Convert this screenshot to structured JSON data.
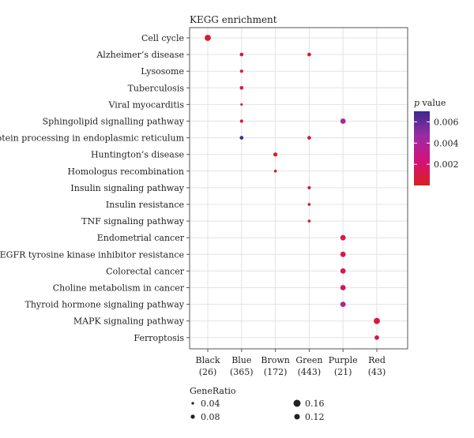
{
  "chart_data": {
    "type": "scatter",
    "title": "KEGG enrichment",
    "categories_x": [
      {
        "name": "Black",
        "count": "(26)"
      },
      {
        "name": "Blue",
        "count": "(365)"
      },
      {
        "name": "Brown",
        "count": "(172)"
      },
      {
        "name": "Green",
        "count": "(443)"
      },
      {
        "name": "Purple",
        "count": "(21)"
      },
      {
        "name": "Red",
        "count": "(43)"
      }
    ],
    "categories_y": [
      "Cell cycle",
      "Alzheimer’s disease",
      "Lysosome",
      "Tuberculosis",
      "Viral myocarditis",
      "Sphingolipid signalling pathway",
      "Protein processing in endoplasmic reticulum",
      "Huntington’s disease",
      "Homologus recombination",
      "Insulin signaling pathway",
      "Insulin resistance",
      "TNF signaling pathway",
      "Endometrial cancer",
      "EGFR tyrosine kinase inhibitor resistance",
      "Colorectal cancer",
      "Choline metabolism in cancer",
      "Thyroid hormone signaling pathway",
      "MAPK signaling pathway",
      "Ferroptosis"
    ],
    "points": [
      {
        "x": "Black",
        "y": "Cell cycle",
        "gene_ratio": 0.12,
        "p": 0.0004
      },
      {
        "x": "Blue",
        "y": "Alzheimer’s disease",
        "gene_ratio": 0.06,
        "p": 0.0006
      },
      {
        "x": "Green",
        "y": "Alzheimer’s disease",
        "gene_ratio": 0.06,
        "p": 0.0006
      },
      {
        "x": "Blue",
        "y": "Lysosome",
        "gene_ratio": 0.05,
        "p": 0.0007
      },
      {
        "x": "Blue",
        "y": "Tuberculosis",
        "gene_ratio": 0.06,
        "p": 0.0005
      },
      {
        "x": "Blue",
        "y": "Viral myocarditis",
        "gene_ratio": 0.03,
        "p": 0.001
      },
      {
        "x": "Blue",
        "y": "Sphingolipid signalling pathway",
        "gene_ratio": 0.05,
        "p": 0.0009
      },
      {
        "x": "Purple",
        "y": "Sphingolipid signalling pathway",
        "gene_ratio": 0.1,
        "p": 0.0042
      },
      {
        "x": "Blue",
        "y": "Protein processing in endoplasmic reticulum",
        "gene_ratio": 0.06,
        "p": 0.0068
      },
      {
        "x": "Green",
        "y": "Protein processing in endoplasmic reticulum",
        "gene_ratio": 0.06,
        "p": 0.0006
      },
      {
        "x": "Brown",
        "y": "Huntington’s disease",
        "gene_ratio": 0.07,
        "p": 0.0004
      },
      {
        "x": "Brown",
        "y": "Homologus recombination",
        "gene_ratio": 0.04,
        "p": 0.0006
      },
      {
        "x": "Green",
        "y": "Insulin signaling pathway",
        "gene_ratio": 0.05,
        "p": 0.0007
      },
      {
        "x": "Green",
        "y": "Insulin resistance",
        "gene_ratio": 0.04,
        "p": 0.0008
      },
      {
        "x": "Green",
        "y": "TNF signaling pathway",
        "gene_ratio": 0.04,
        "p": 0.0008
      },
      {
        "x": "Purple",
        "y": "Endometrial cancer",
        "gene_ratio": 0.1,
        "p": 0.001
      },
      {
        "x": "Purple",
        "y": "EGFR tyrosine kinase inhibitor resistance",
        "gene_ratio": 0.1,
        "p": 0.0012
      },
      {
        "x": "Purple",
        "y": "Colorectal cancer",
        "gene_ratio": 0.1,
        "p": 0.0012
      },
      {
        "x": "Purple",
        "y": "Choline metabolism in cancer",
        "gene_ratio": 0.1,
        "p": 0.0018
      },
      {
        "x": "Purple",
        "y": "Thyroid hormone signaling pathway",
        "gene_ratio": 0.1,
        "p": 0.004
      },
      {
        "x": "Red",
        "y": "MAPK signaling pathway",
        "gene_ratio": 0.12,
        "p": 0.0008
      },
      {
        "x": "Red",
        "y": "Ferroptosis",
        "gene_ratio": 0.08,
        "p": 0.0009
      }
    ],
    "color_legend": {
      "title_italic": "p",
      "title_rest": " value",
      "range": [
        0,
        0.007
      ],
      "ticks": [
        0.006,
        0.004,
        0.002
      ],
      "tick_labels": [
        "0.006",
        "0.004",
        "0.002"
      ],
      "colors": [
        "#d62020",
        "#d6107a",
        "#9b2ca3",
        "#3b2a8f"
      ]
    },
    "size_legend": {
      "title": "GeneRatio",
      "entries": [
        {
          "value": 0.04,
          "label": "0.04"
        },
        {
          "value": 0.08,
          "label": "0.08"
        },
        {
          "value": 0.16,
          "label": "0.16"
        },
        {
          "value": 0.12,
          "label": "0.12"
        }
      ]
    },
    "grid": true,
    "legend_position": "right and bottom"
  }
}
